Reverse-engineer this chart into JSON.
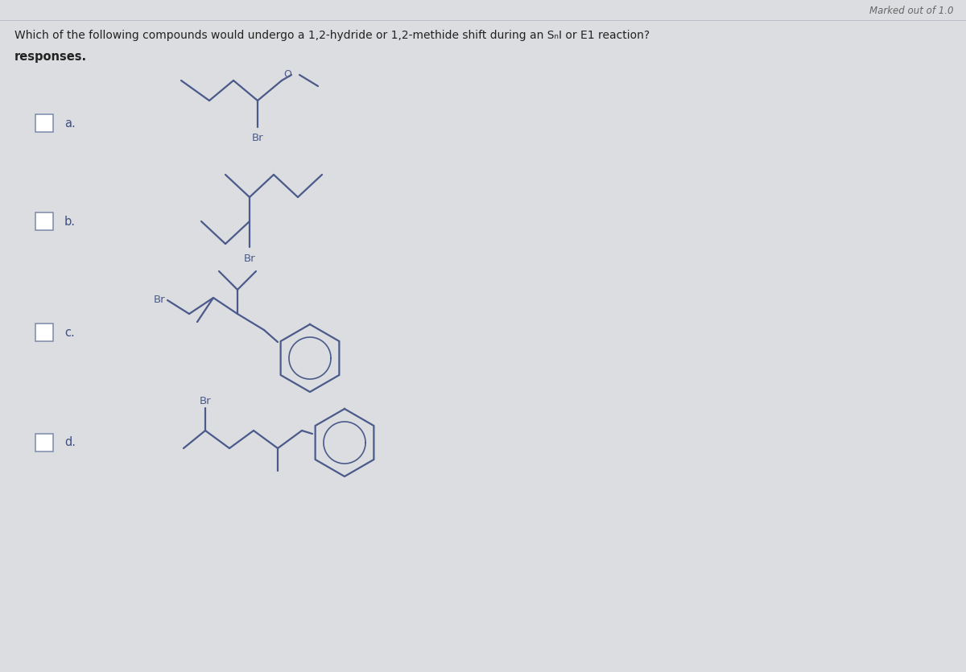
{
  "background_color": "#dcdde0",
  "title_text": "Marked out of 1.0",
  "question_line1": "Which of the following compounds would undergo a 1,2-hydride or 1,2-methide shift during an SₙI or E1 reaction?",
  "question_line2": "responses.",
  "label_color": "#3d4f82",
  "text_color": "#222222",
  "line_color": "#4a5a8a",
  "line_width": 1.6,
  "br_fontsize": 9.5,
  "label_fontsize": 10.5,
  "checkbox_color": "#7a8aaa",
  "checkbox_size": 0.22
}
